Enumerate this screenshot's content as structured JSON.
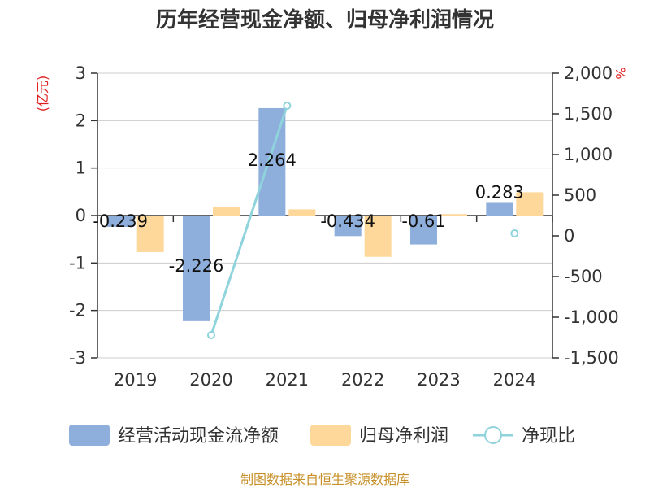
{
  "chart_data": {
    "type": "bar",
    "title": "历年经营现金净额、归母净利润情况",
    "categories": [
      "2019",
      "2020",
      "2021",
      "2022",
      "2023",
      "2024"
    ],
    "left_axis": {
      "unit": "(亿元)",
      "ylim": [
        -3,
        3
      ],
      "ticks": [
        3,
        2,
        1,
        0,
        -1,
        -2,
        -3
      ],
      "tick_labels": [
        "3",
        "2",
        "1",
        "0",
        "-1",
        "-2",
        "-3"
      ]
    },
    "right_axis": {
      "unit": "%",
      "ylim": [
        -1500,
        2000
      ],
      "ticks": [
        2000,
        1500,
        1000,
        500,
        0,
        -500,
        -1000,
        -1500
      ],
      "tick_labels": [
        "2,000",
        "1,500",
        "1,000",
        "500",
        "0",
        "-500",
        "-1,000",
        "-1,500"
      ]
    },
    "series": [
      {
        "name": "经营活动现金流净额",
        "kind": "bar",
        "axis": "left",
        "color": "#8eaedb",
        "values": [
          -0.239,
          -2.226,
          2.264,
          -0.434,
          -0.61,
          0.283
        ],
        "labels": [
          "-0.239",
          "-2.226",
          "2.264",
          "-0.434",
          "-0.61",
          "0.283"
        ]
      },
      {
        "name": "归母净利润",
        "kind": "bar",
        "axis": "left",
        "color": "#fdd89a",
        "values": [
          -0.77,
          0.18,
          0.13,
          -0.87,
          0.03,
          0.49
        ]
      },
      {
        "name": "净现比",
        "kind": "line",
        "axis": "right",
        "color": "#8fd3dc",
        "values": [
          null,
          -1220,
          1600,
          null,
          null,
          30
        ]
      }
    ],
    "grid": true,
    "legend": "bottom"
  },
  "source": "制图数据来自恒生聚源数据库"
}
